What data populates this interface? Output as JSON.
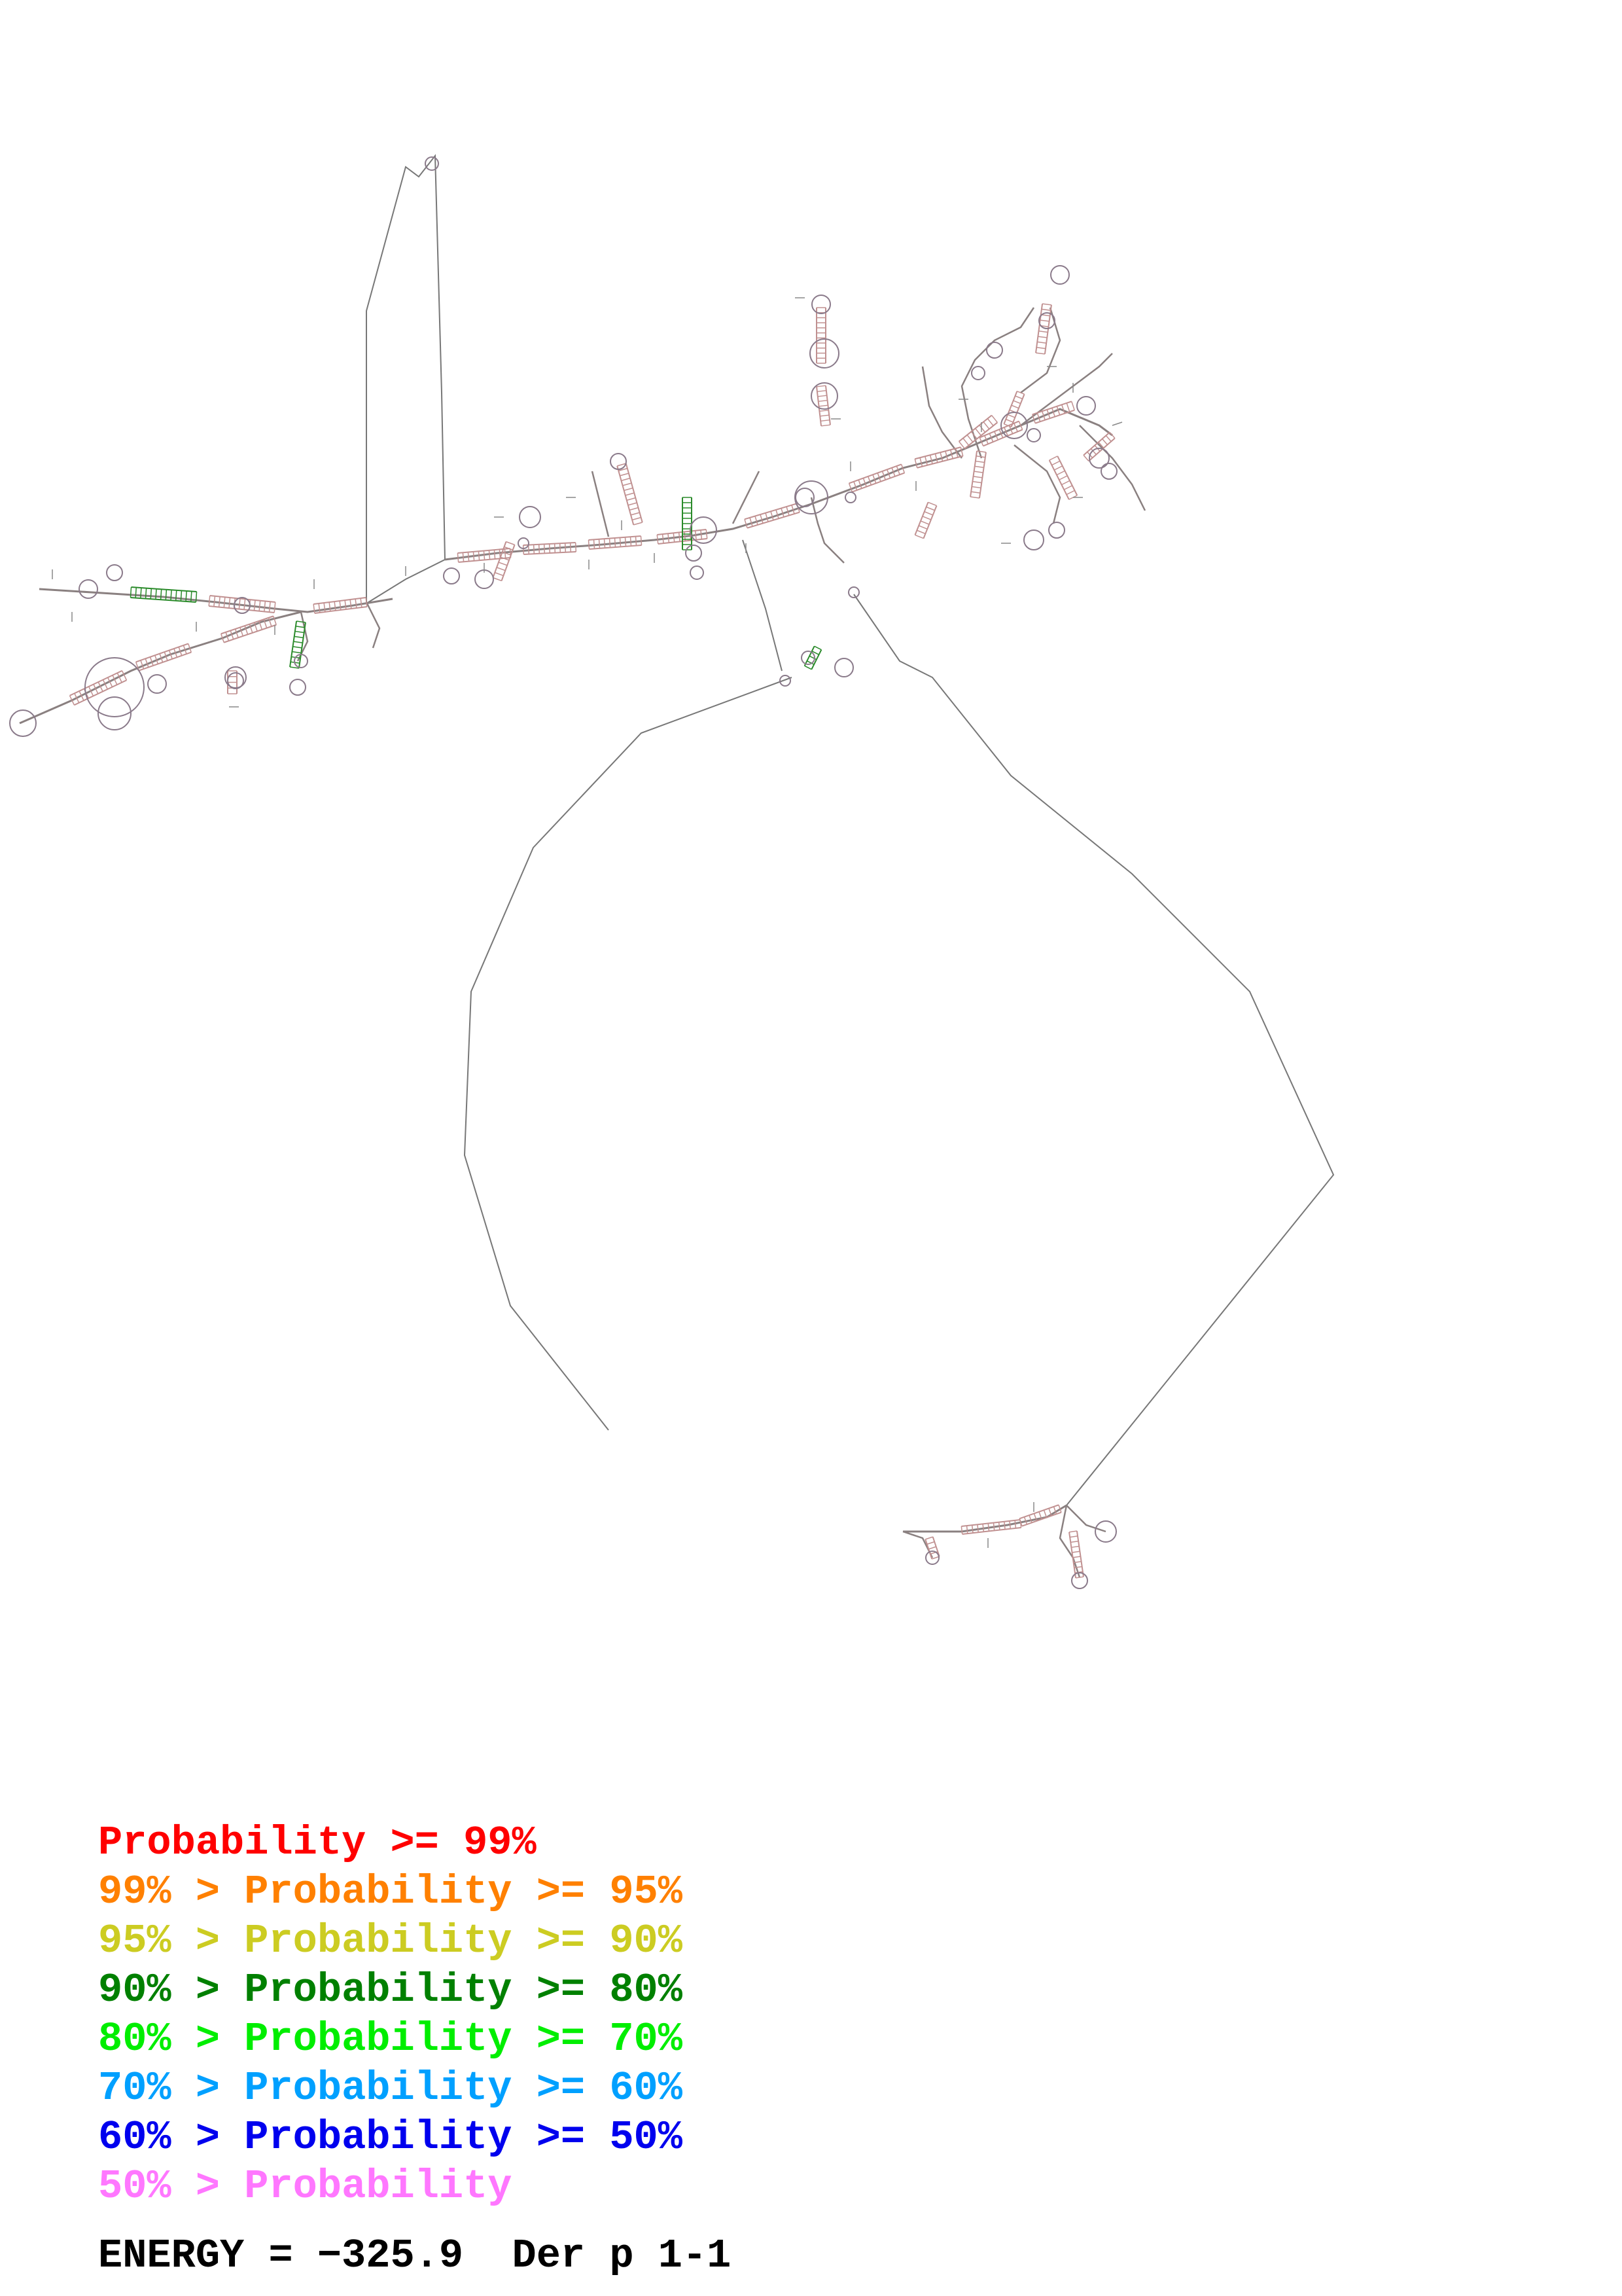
{
  "legend": {
    "rows": [
      {
        "prefix": "",
        "text": "Probability >= 99%",
        "color": "#ff0000"
      },
      {
        "prefix": "99% > ",
        "text": "Probability >= 95%",
        "color": "#ff8000"
      },
      {
        "prefix": "95% > ",
        "text": "Probability >= 90%",
        "color": "#cccc22"
      },
      {
        "prefix": "90% > ",
        "text": "Probability >= 80%",
        "color": "#008000"
      },
      {
        "prefix": "80% > ",
        "text": "Probability >= 70%",
        "color": "#00ee00"
      },
      {
        "prefix": "70% > ",
        "text": "Probability >= 60%",
        "color": "#00a0ff"
      },
      {
        "prefix": "60% > ",
        "text": "Probability >= 50%",
        "color": "#0000ee"
      },
      {
        "prefix": "50% > ",
        "text": "Probability",
        "color": "#ff77ff"
      }
    ]
  },
  "footer": {
    "energy_label": "ENERGY = −325.9",
    "sequence_name": "Der p 1-1"
  },
  "colors": {
    "backbone": "#777777",
    "pair_default": "#c09090",
    "pair_high": "#2a8a2a"
  }
}
